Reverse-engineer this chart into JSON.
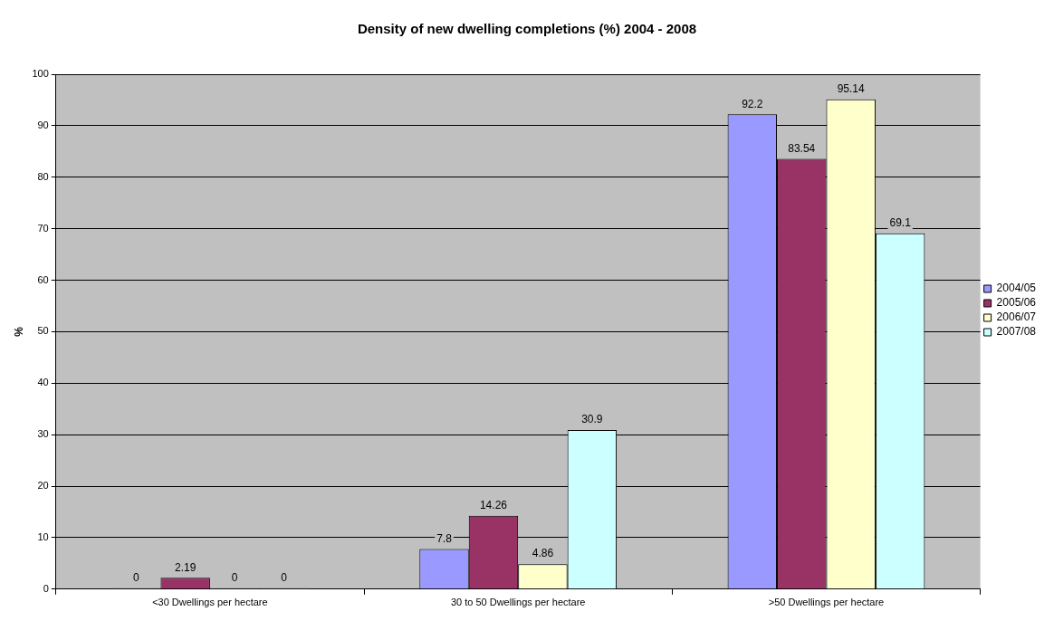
{
  "chart_data": {
    "type": "bar",
    "title": "Density of new dwelling completions (%) 2004 - 2008",
    "ylabel": "%",
    "categories": [
      "<30 Dwellings per hectare",
      "30 to 50 Dwellings per hectare",
      ">50 Dwellings per hectare"
    ],
    "series": [
      {
        "name": "2004/05",
        "color": "#9999ff",
        "values": [
          0,
          7.8,
          92.2
        ]
      },
      {
        "name": "2005/06",
        "color": "#993366",
        "values": [
          2.19,
          14.26,
          83.54
        ]
      },
      {
        "name": "2006/07",
        "color": "#ffffcc",
        "values": [
          0,
          4.86,
          95.14
        ]
      },
      {
        "name": "2007/08",
        "color": "#ccffff",
        "values": [
          0,
          30.9,
          69.1
        ]
      }
    ],
    "ylim": [
      0,
      100
    ],
    "yticks": [
      0,
      10,
      20,
      30,
      40,
      50,
      60,
      70,
      80,
      90,
      100
    ],
    "grid": "y",
    "legend": "right",
    "data_labels": true
  }
}
